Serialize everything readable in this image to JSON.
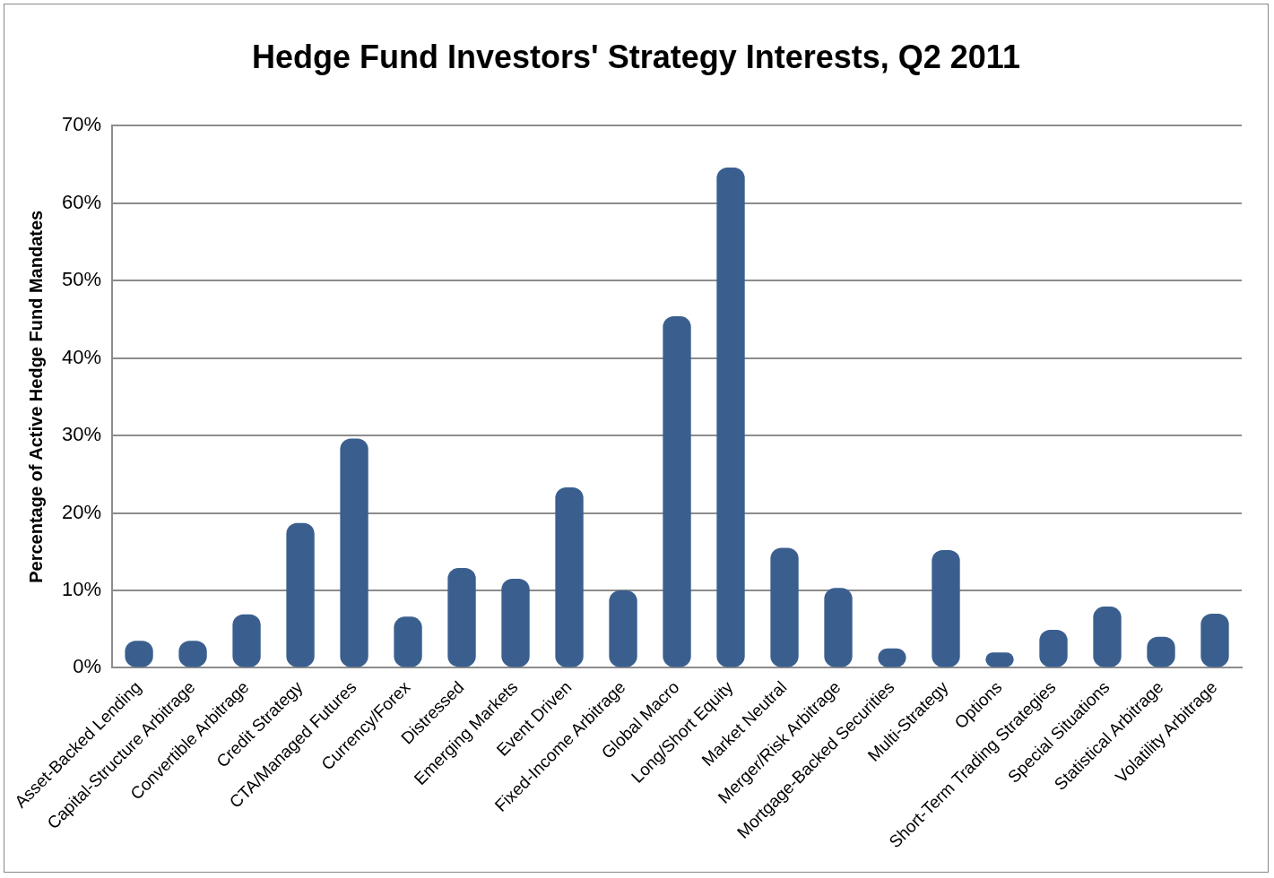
{
  "chart_data": {
    "type": "bar",
    "title": "Hedge Fund Investors' Strategy Interests, Q2 2011",
    "ylabel": "Percentage of Active Hedge Fund Mandates",
    "categories": [
      "Asset-Backed Lending",
      "Capital-Structure Arbitrage",
      "Convertible Arbitrage",
      "Credit Strategy",
      "CTA/Managed Futures",
      "Currency/Forex",
      "Distressed",
      "Emerging Markets",
      "Event Driven",
      "Fixed-Income Arbitrage",
      "Global Macro",
      "Long/Short Equity",
      "Market Neutral",
      "Merger/Risk Arbitrage",
      "Mortgage-Backed Securities",
      "Multi-Strategy",
      "Options",
      "Short-Term Trading Strategies",
      "Special Situations",
      "Statistical Arbitrage",
      "Volatility Arbitrage"
    ],
    "values": [
      3.5,
      3.5,
      6.9,
      18.7,
      29.6,
      6.6,
      12.9,
      11.5,
      23.3,
      10.0,
      45.4,
      64.6,
      15.5,
      10.3,
      2.5,
      15.2,
      2.0,
      4.9,
      7.9,
      4.0,
      7.0
    ],
    "color": "#3a5f8f",
    "ylim": [
      0,
      70
    ],
    "yticks": [
      {
        "value": 0,
        "label": "0%"
      },
      {
        "value": 10,
        "label": "10%"
      },
      {
        "value": 20,
        "label": "20%"
      },
      {
        "value": 30,
        "label": "30%"
      },
      {
        "value": 40,
        "label": "40%"
      },
      {
        "value": 50,
        "label": "50%"
      },
      {
        "value": 60,
        "label": "60%"
      },
      {
        "value": 70,
        "label": "70%"
      }
    ],
    "grid": "y",
    "legend": false
  }
}
